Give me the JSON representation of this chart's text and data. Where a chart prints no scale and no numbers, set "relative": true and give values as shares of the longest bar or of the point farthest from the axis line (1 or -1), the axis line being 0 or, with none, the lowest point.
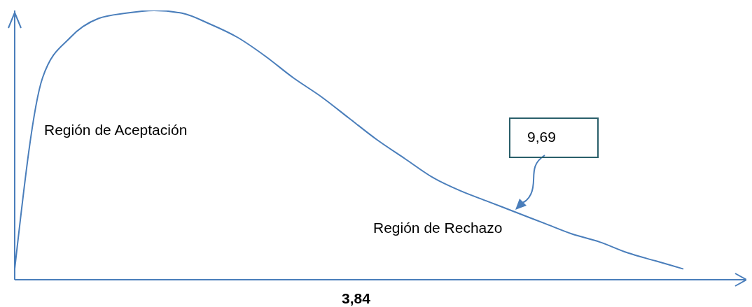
{
  "chart_data": {
    "type": "line",
    "relative": true,
    "color": "#4a7ebb",
    "marker": "none",
    "grid": false,
    "legend": false,
    "categories": [
      null,
      null,
      null,
      null,
      null,
      null,
      null,
      null,
      null,
      null,
      null,
      null,
      null,
      null,
      null,
      null,
      null,
      null,
      null,
      null,
      null,
      null,
      null,
      null,
      null
    ],
    "values": [
      0.04,
      0.75,
      0.9,
      0.97,
      0.99,
      1.0,
      0.99,
      0.95,
      0.9,
      0.83,
      0.75,
      0.68,
      0.6,
      0.52,
      0.45,
      0.38,
      0.33,
      0.29,
      0.25,
      0.21,
      0.17,
      0.14,
      0.1,
      0.07,
      0.04
    ],
    "annotations": [
      "Región de Aceptación",
      "9,69",
      "Región de Rechazo",
      "3,84"
    ]
  }
}
